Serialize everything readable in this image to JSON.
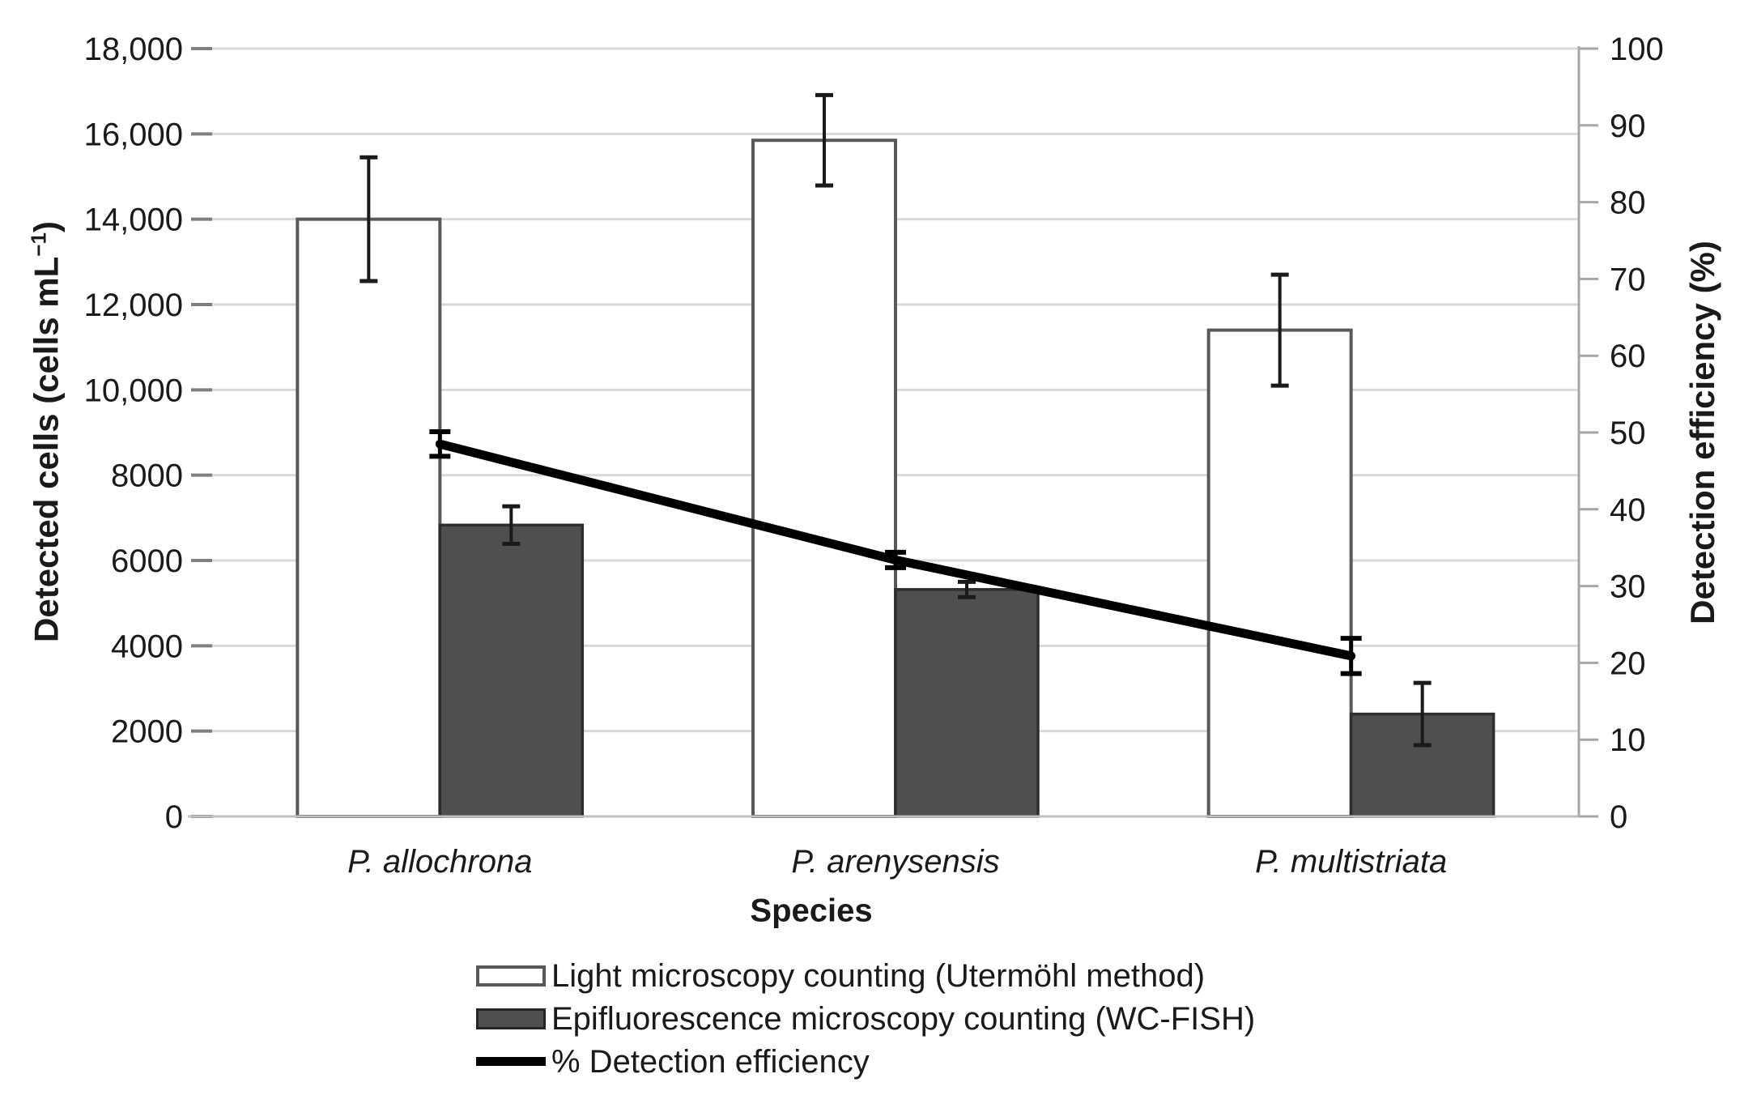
{
  "chart_data": {
    "type": "bar",
    "subtype": "grouped-bars-with-line-overlay",
    "title": "",
    "categories": [
      "P. allochrona",
      "P. arenysensis",
      "P. multistriata"
    ],
    "x_axis": {
      "label": "Species"
    },
    "left_axis": {
      "label_prefix": "Detected cells (cells mL",
      "label_sup": "−1",
      "label_suffix": ")",
      "min": 0,
      "max": 18000,
      "tick_step": 2000,
      "tick_labels": [
        "0",
        "2000",
        "4000",
        "6000",
        "8000",
        "10,000",
        "12,000",
        "14,000",
        "16,000",
        "18,000"
      ]
    },
    "right_axis": {
      "label": "Detection efficiency (%)",
      "min": 0,
      "max": 100,
      "tick_step": 10,
      "tick_labels": [
        "0",
        "10",
        "20",
        "30",
        "40",
        "50",
        "60",
        "70",
        "80",
        "90",
        "100"
      ]
    },
    "series": [
      {
        "name": "Light microscopy counting (Utermöhl method)",
        "type": "bar",
        "axis": "left",
        "fill": "#ffffff",
        "stroke": "#595959",
        "values": [
          14000,
          15850,
          11400
        ],
        "errors": [
          1450,
          1060,
          1300
        ]
      },
      {
        "name": "Epifluorescence microscopy counting (WC-FISH)",
        "type": "bar",
        "axis": "left",
        "fill": "#4f4f4f",
        "stroke": "#2e2e2e",
        "values": [
          6830,
          5320,
          2400
        ],
        "errors": [
          440,
          180,
          730
        ]
      },
      {
        "name": "% Detection efficiency",
        "type": "line",
        "axis": "right",
        "color": "#000000",
        "values": [
          48.5,
          33.4,
          20.9
        ],
        "errors": [
          1.6,
          1.0,
          2.3
        ]
      }
    ],
    "grid": true,
    "gridline_color": "#d9d9d9",
    "axis_line_color": "#bfbfbf",
    "tick_color": "#7f7f7f",
    "error_bar_color": "#1a1a1a",
    "legend_position": "bottom-left"
  }
}
